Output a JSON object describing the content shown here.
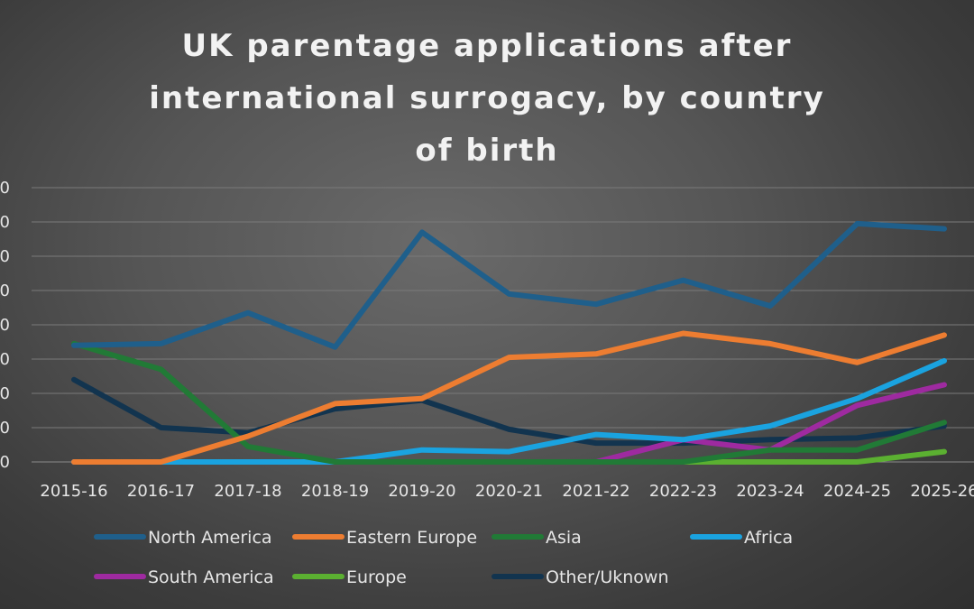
{
  "chart_data": {
    "type": "line",
    "title": "UK parentage applications after international surrogacy, by country of birth",
    "categories": [
      "2015-16",
      "2016-17",
      "2017-18",
      "2018-19",
      "2019-20",
      "2020-21",
      "2021-22",
      "2022-23",
      "2023-24",
      "2024-25",
      "2025-26"
    ],
    "y_tick_count": 9,
    "grid": true,
    "legend_position": "bottom",
    "series": [
      {
        "name": "North America",
        "color": "#1f5f8b",
        "values": [
          3.4,
          3.45,
          4.35,
          3.35,
          6.7,
          4.9,
          4.6,
          5.3,
          4.55,
          6.95,
          6.8
        ]
      },
      {
        "name": "Eastern Europe",
        "color": "#ed7d31",
        "values": [
          0,
          0,
          0.75,
          1.7,
          1.85,
          3.05,
          3.15,
          3.75,
          3.45,
          2.9,
          3.7
        ]
      },
      {
        "name": "Asia",
        "color": "#217a36",
        "values": [
          3.45,
          2.7,
          0.45,
          0,
          0,
          0,
          0,
          0,
          0.35,
          0.35,
          1.15
        ]
      },
      {
        "name": "Africa",
        "color": "#1aa3e0",
        "values": [
          0,
          0,
          0,
          0,
          0.35,
          0.3,
          0.8,
          0.65,
          1.05,
          1.85,
          2.95
        ]
      },
      {
        "name": "South America",
        "color": "#9e2aa0",
        "values": [
          0,
          0,
          0,
          0,
          0,
          0,
          0,
          0.65,
          0.35,
          1.65,
          2.25
        ]
      },
      {
        "name": "Europe",
        "color": "#5bb031",
        "values": [
          0,
          0,
          0,
          0,
          0,
          0,
          0,
          0,
          0,
          0,
          0.3
        ]
      },
      {
        "name": "Other/Uknown",
        "color": "#12344f",
        "values": [
          2.4,
          1.0,
          0.85,
          1.55,
          1.8,
          0.95,
          0.55,
          0.55,
          0.65,
          0.7,
          1.05
        ]
      }
    ]
  }
}
